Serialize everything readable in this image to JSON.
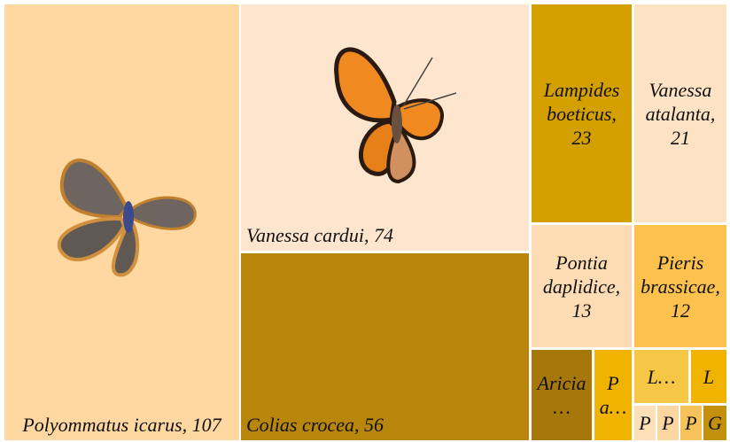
{
  "chart_data": {
    "type": "treemap",
    "values": [
      107,
      74,
      56,
      23,
      21,
      13,
      12,
      6,
      4,
      3,
      2,
      1,
      1,
      1,
      1
    ],
    "value_labels": [
      "Polyommatus icarus, 107",
      "Vanessa cardui, 74",
      "Colias crocea, 56",
      "Lampides boeticus, 23",
      "Vanessa atalanta, 21",
      "Pontia daplidice, 13",
      "Pieris brassicae, 12",
      "Aricia…",
      "P a…",
      "L…",
      "L",
      "P",
      "P",
      "P",
      "G"
    ],
    "colors": [
      "#fed8a0",
      "#fde6cd",
      "#b8860b",
      "#d4a000",
      "#fde2c4",
      "#fddcb4",
      "#fdc24e",
      "#a6770a",
      "#f0b400",
      "#f6c744",
      "#f0b400",
      "#fde0b8",
      "#fcd6a0",
      "#f7c25a",
      "#c2900c"
    ]
  }
}
